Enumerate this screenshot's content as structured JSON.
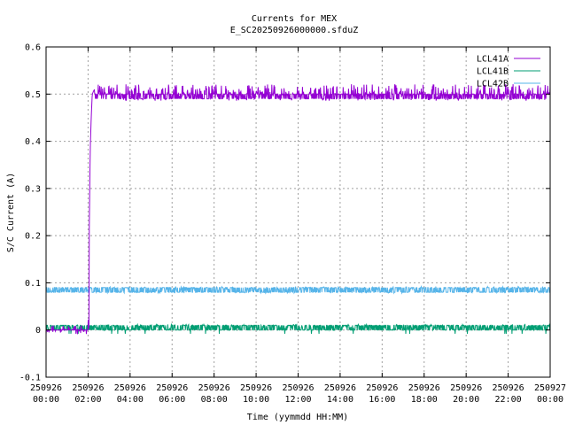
{
  "chart_data": {
    "type": "line",
    "title": "Currents for MEX",
    "subtitle": "E_SC20250926000000.sfduZ",
    "xlabel": "Time (yymmdd HH:MM)",
    "ylabel": "S/C Current (A)",
    "xlim_hours": [
      0,
      24
    ],
    "ylim": [
      -0.1,
      0.6
    ],
    "yticks": [
      "-0.1",
      "0",
      "0.1",
      "0.2",
      "0.3",
      "0.4",
      "0.5",
      "0.6"
    ],
    "xticks": [
      {
        "date": "250926",
        "time": "00:00"
      },
      {
        "date": "250926",
        "time": "02:00"
      },
      {
        "date": "250926",
        "time": "04:00"
      },
      {
        "date": "250926",
        "time": "06:00"
      },
      {
        "date": "250926",
        "time": "08:00"
      },
      {
        "date": "250926",
        "time": "10:00"
      },
      {
        "date": "250926",
        "time": "12:00"
      },
      {
        "date": "250926",
        "time": "14:00"
      },
      {
        "date": "250926",
        "time": "16:00"
      },
      {
        "date": "250926",
        "time": "18:00"
      },
      {
        "date": "250926",
        "time": "20:00"
      },
      {
        "date": "250926",
        "time": "22:00"
      },
      {
        "date": "250927",
        "time": "00:00"
      }
    ],
    "grid": true,
    "legend_position": "top-right",
    "series": [
      {
        "name": "LCL41A",
        "color": "#9400d3",
        "description_values": "near 0 until ~02:10, then ~0.50 A with noise",
        "x_hours": [
          0,
          2.0,
          2.1,
          2.15,
          2.2,
          2.3,
          2.5,
          4,
          8,
          12,
          16,
          20,
          24
        ],
        "values": [
          0.0,
          0.0,
          0.38,
          0.45,
          0.5,
          0.51,
          0.5,
          0.5,
          0.5,
          0.5,
          0.5,
          0.5,
          0.5
        ]
      },
      {
        "name": "LCL41B",
        "color": "#009e73",
        "x_hours": [
          0,
          24
        ],
        "values": [
          0.005,
          0.005
        ]
      },
      {
        "name": "LCL42B",
        "color": "#56b4e9",
        "x_hours": [
          0,
          24
        ],
        "values": [
          0.085,
          0.085
        ]
      }
    ]
  }
}
